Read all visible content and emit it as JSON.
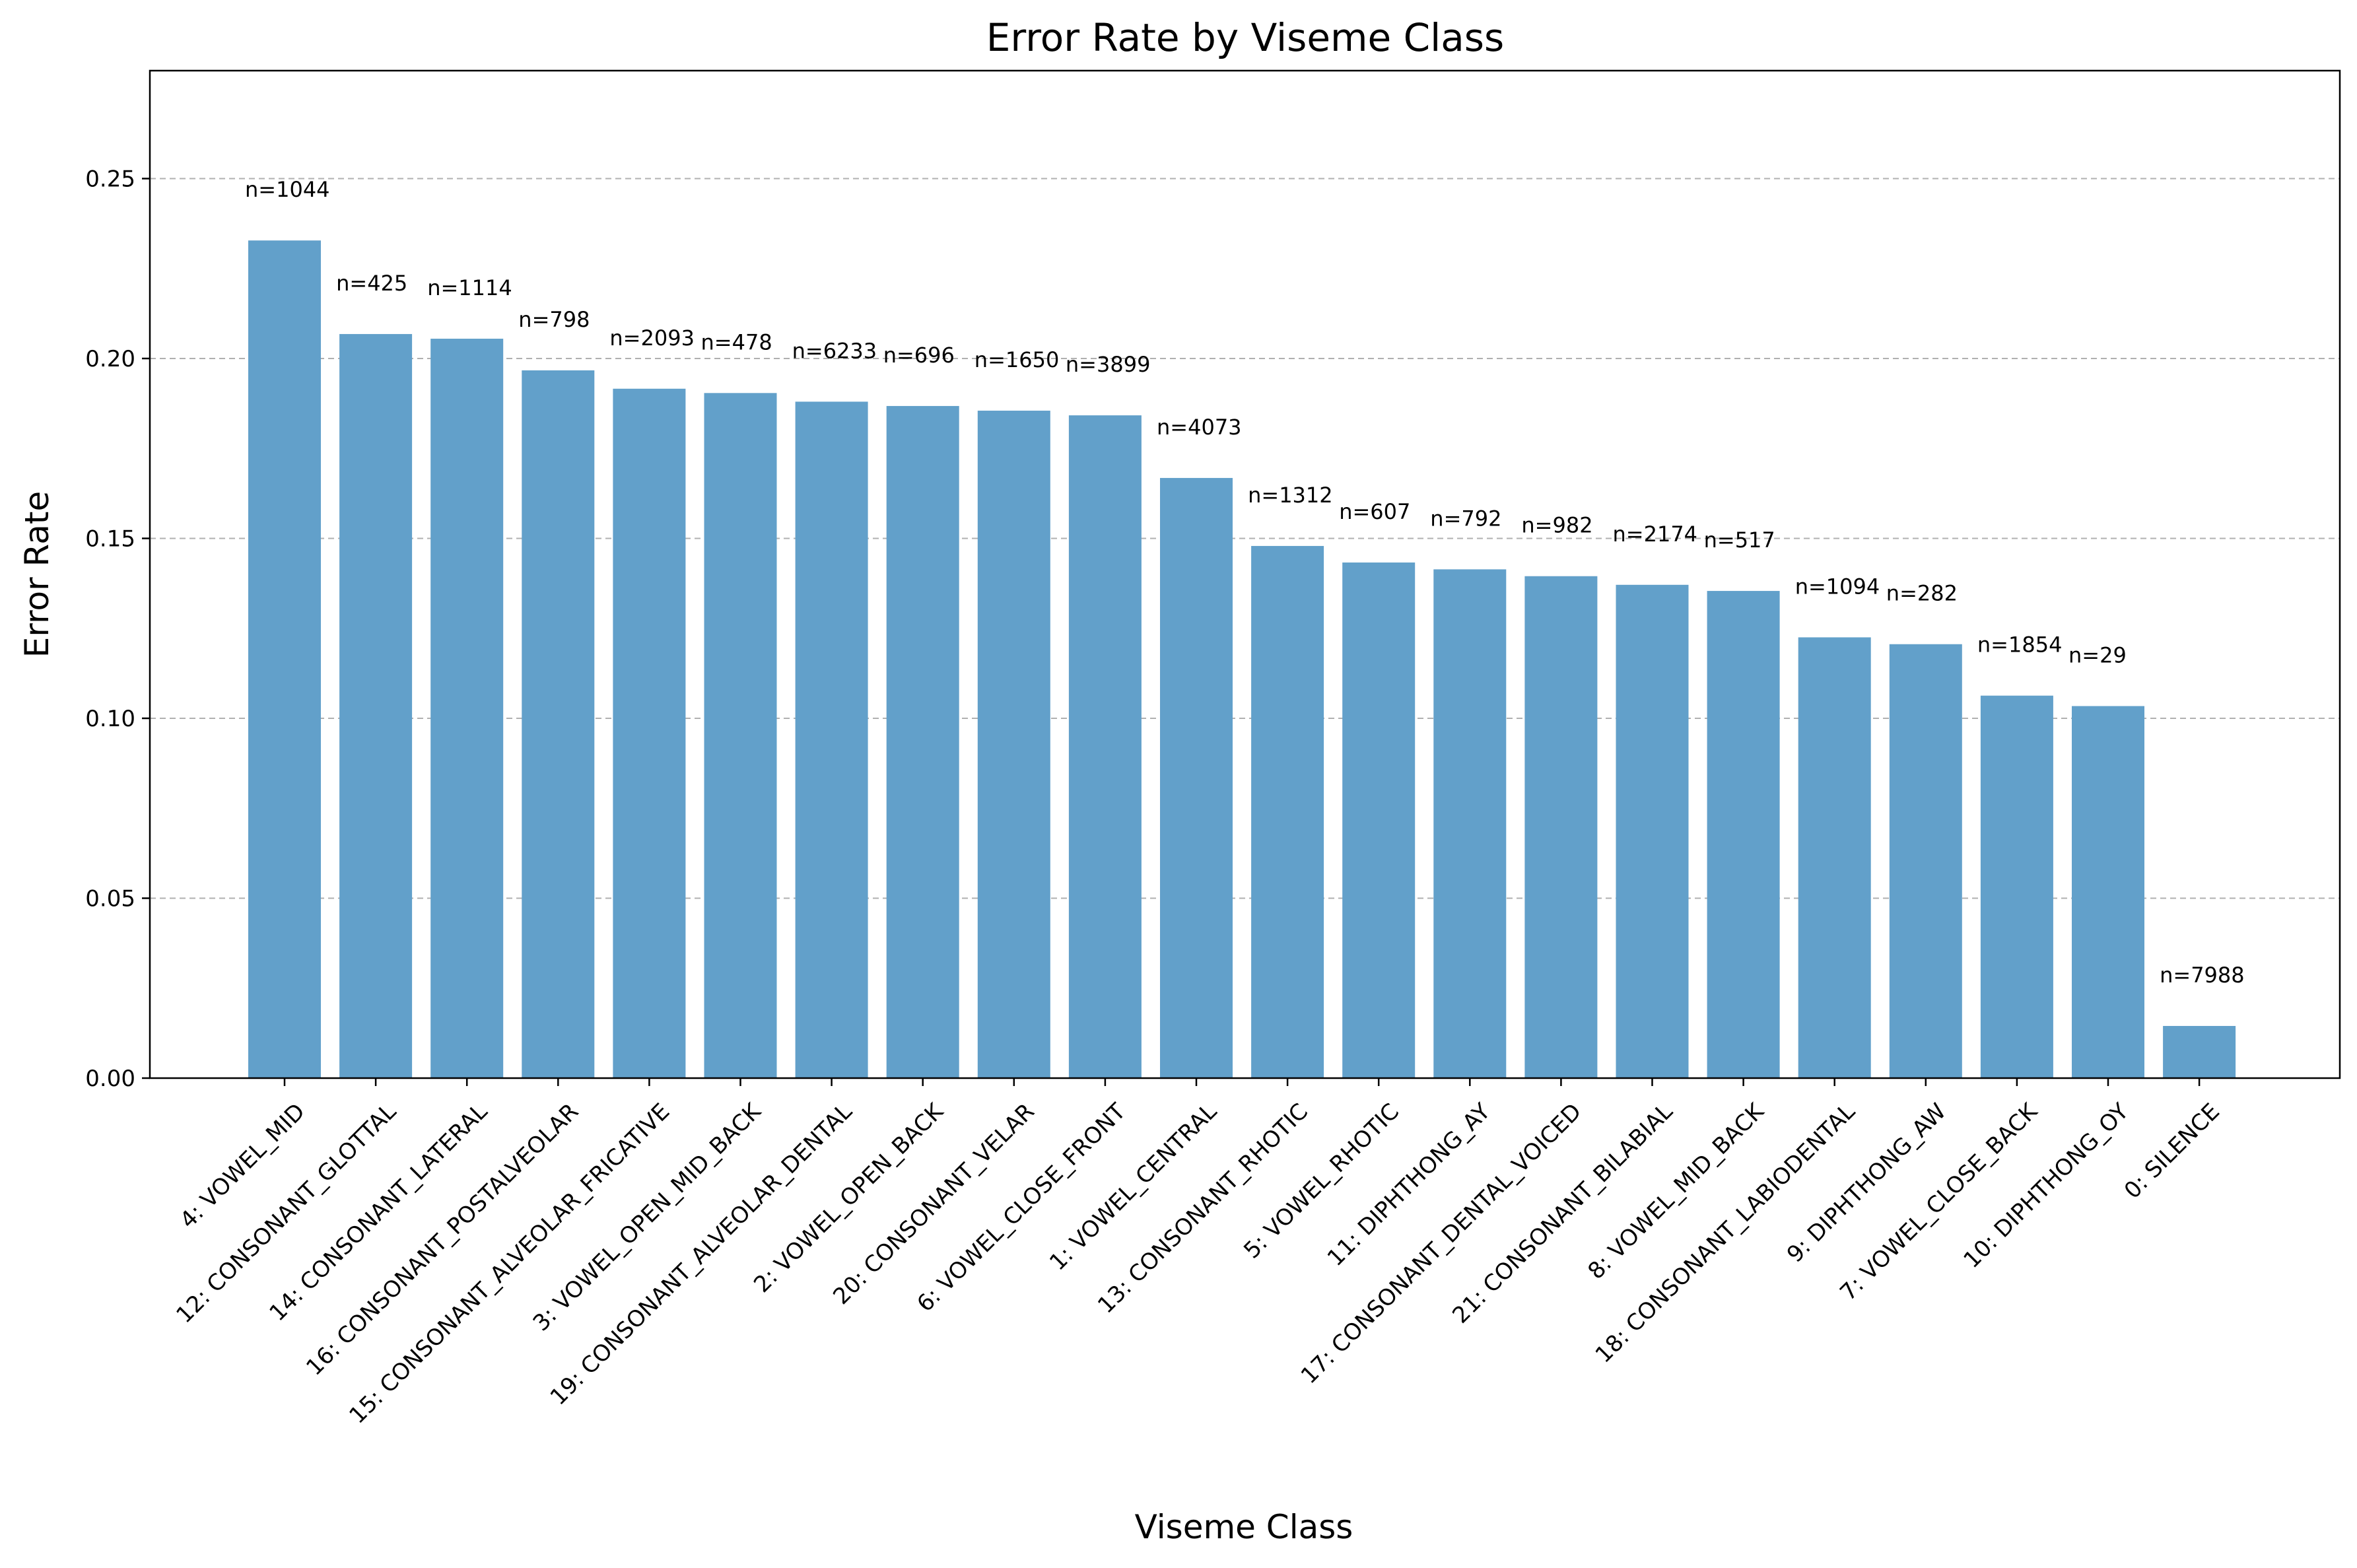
{
  "chart_data": {
    "type": "bar",
    "title": "Error Rate by Viseme Class",
    "xlabel": "Viseme Class",
    "ylabel": "Error Rate",
    "ylim": [
      0,
      0.28
    ],
    "yticks": [
      0.0,
      0.05,
      0.1,
      0.15,
      0.2,
      0.25
    ],
    "ytick_labels": [
      "0.00",
      "0.05",
      "0.10",
      "0.15",
      "0.20",
      "0.25"
    ],
    "grid": "y dashed",
    "bar_color": "#62a0ca",
    "categories": [
      "4: VOWEL_MID",
      "12: CONSONANT_GLOTTAL",
      "14: CONSONANT_LATERAL",
      "16: CONSONANT_POSTALVEOLAR",
      "15: CONSONANT_ALVEOLAR_FRICATIVE",
      "3: VOWEL_OPEN_MID_BACK",
      "19: CONSONANT_ALVEOLAR_DENTAL",
      "2: VOWEL_OPEN_BACK",
      "20: CONSONANT_VELAR",
      "6: VOWEL_CLOSE_FRONT",
      "1: VOWEL_CENTRAL",
      "13: CONSONANT_RHOTIC",
      "5: VOWEL_RHOTIC",
      "11: DIPHTHONG_AY",
      "17: CONSONANT_DENTAL_VOICED",
      "21: CONSONANT_BILABIAL",
      "8: VOWEL_MID_BACK",
      "18: CONSONANT_LABIODENTAL",
      "9: DIPHTHONG_AW",
      "7: VOWEL_CLOSE_BACK",
      "10: DIPHTHONG_OY",
      "0: SILENCE"
    ],
    "values": [
      0.2328,
      0.2068,
      0.2055,
      0.1967,
      0.1916,
      0.1904,
      0.188,
      0.1868,
      0.1855,
      0.1842,
      0.1668,
      0.1479,
      0.1433,
      0.1414,
      0.1395,
      0.1371,
      0.1354,
      0.1225,
      0.1206,
      0.1063,
      0.1034,
      0.0145
    ],
    "annotations": [
      "n=1044",
      "n=425",
      "n=1114",
      "n=798",
      "n=2093",
      "n=478",
      "n=6233",
      "n=696",
      "n=1650",
      "n=3899",
      "n=4073",
      "n=1312",
      "n=607",
      "n=792",
      "n=982",
      "n=2174",
      "n=517",
      "n=1094",
      "n=282",
      "n=1854",
      "n=29",
      "n=7988"
    ]
  }
}
